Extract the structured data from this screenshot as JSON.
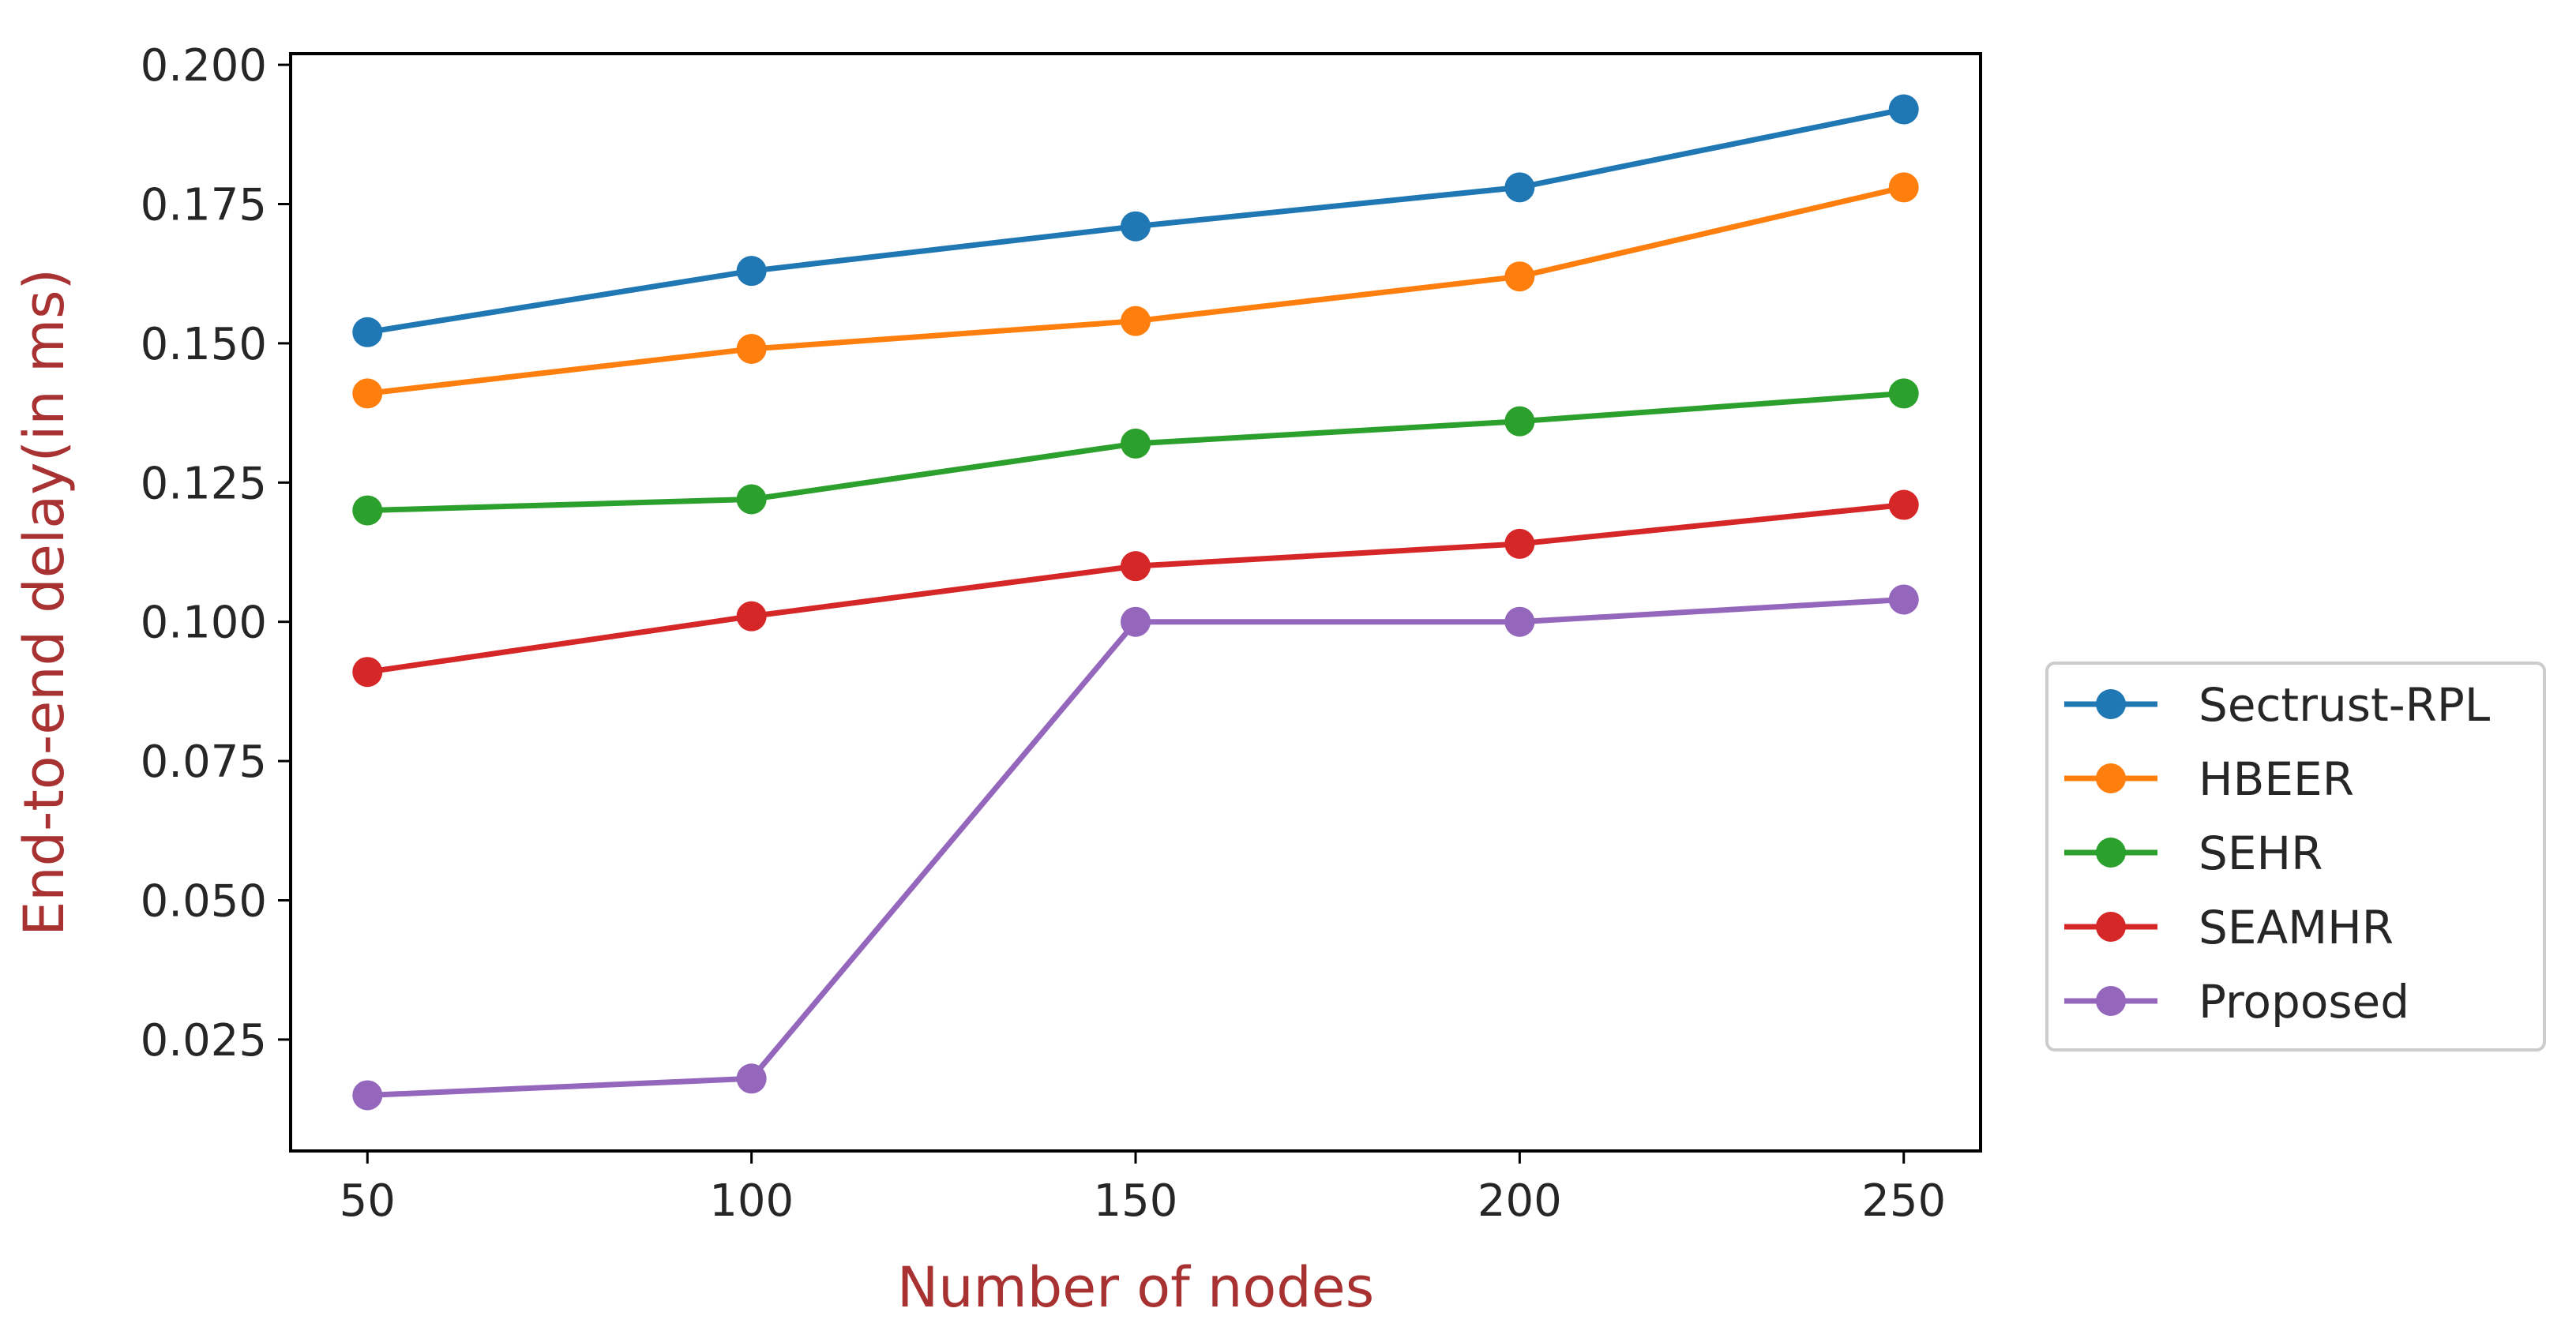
{
  "chart_data": {
    "type": "line",
    "xlabel": "Number of nodes",
    "ylabel": "End-to-end delay(in ms)",
    "x": [
      50,
      100,
      150,
      200,
      250
    ],
    "xticks": [
      "50",
      "100",
      "150",
      "200",
      "250"
    ],
    "xlim": [
      40,
      260
    ],
    "ylim": [
      0.005,
      0.202
    ],
    "yticks": [
      "0.025",
      "0.050",
      "0.075",
      "0.100",
      "0.125",
      "0.150",
      "0.175",
      "0.200"
    ],
    "grid": false,
    "legend_position": "outside-right",
    "series": [
      {
        "name": "Sectrust-RPL",
        "color": "#1f77b4",
        "values": [
          0.152,
          0.163,
          0.171,
          0.178,
          0.192
        ]
      },
      {
        "name": "HBEER",
        "color": "#ff7f0e",
        "values": [
          0.141,
          0.149,
          0.154,
          0.162,
          0.178
        ]
      },
      {
        "name": "SEHR",
        "color": "#2ca02c",
        "values": [
          0.12,
          0.122,
          0.132,
          0.136,
          0.141
        ]
      },
      {
        "name": "SEAMHR",
        "color": "#d62728",
        "values": [
          0.091,
          0.101,
          0.11,
          0.114,
          0.121
        ]
      },
      {
        "name": "Proposed",
        "color": "#9467bd",
        "values": [
          0.015,
          0.018,
          0.1,
          0.1,
          0.104
        ]
      }
    ]
  }
}
